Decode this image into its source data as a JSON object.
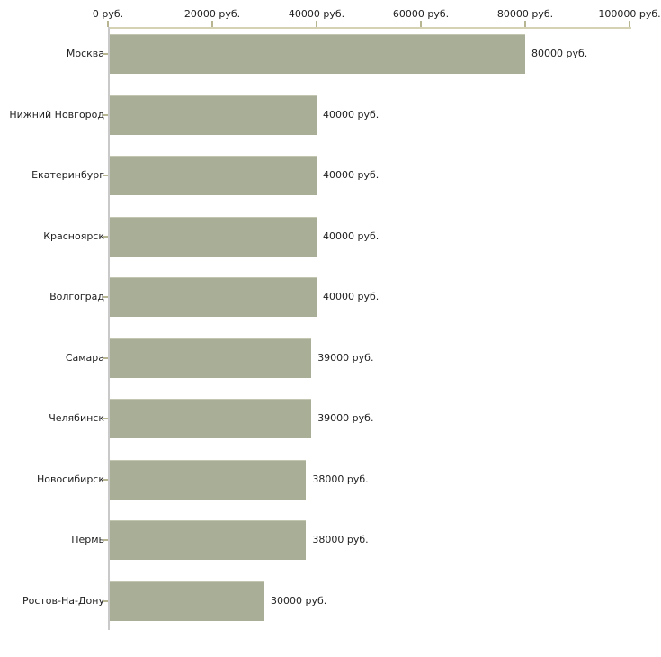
{
  "chart_data": {
    "type": "bar",
    "orientation": "horizontal",
    "title": "",
    "xlabel": "",
    "ylabel": "",
    "unit": "руб.",
    "categories": [
      "Москва",
      "Нижний Новгород",
      "Екатеринбург",
      "Красноярск",
      "Волгоград",
      "Самара",
      "Челябинск",
      "Новосибирск",
      "Пермь",
      "Ростов-На-Дону"
    ],
    "values": [
      80000,
      40000,
      40000,
      40000,
      40000,
      39000,
      39000,
      38000,
      38000,
      30000
    ],
    "value_labels": [
      "80000 руб.",
      "40000 руб.",
      "40000 руб.",
      "40000 руб.",
      "40000 руб.",
      "39000 руб.",
      "39000 руб.",
      "38000 руб.",
      "38000 руб.",
      "30000 руб."
    ],
    "x_tick_values": [
      0,
      20000,
      40000,
      60000,
      80000,
      100000
    ],
    "x_tick_labels": [
      "0 руб.",
      "20000 руб.",
      "40000 руб.",
      "60000 руб.",
      "80000 руб.",
      "100000 руб."
    ],
    "xlim": [
      0,
      100000
    ],
    "axis_position": "top",
    "grid": "off",
    "legend": "none",
    "colors": {
      "bar_fill": "#a9ae97",
      "x_axis_line": "#d5d2b3",
      "x_tick": "#b8b593",
      "y_axis_line": "#c9c9c9",
      "category_tick": "#b8b593",
      "text": "#1f1f1f",
      "background": "#ffffff"
    }
  }
}
